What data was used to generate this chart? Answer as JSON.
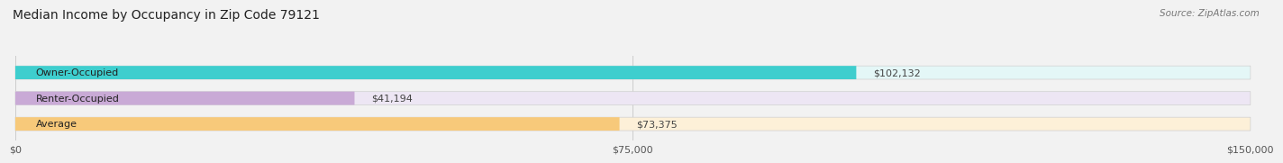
{
  "title": "Median Income by Occupancy in Zip Code 79121",
  "source": "Source: ZipAtlas.com",
  "categories": [
    "Owner-Occupied",
    "Renter-Occupied",
    "Average"
  ],
  "values": [
    102132,
    41194,
    73375
  ],
  "labels": [
    "$102,132",
    "$41,194",
    "$73,375"
  ],
  "bar_colors": [
    "#3ecece",
    "#c9aad6",
    "#f7c97a"
  ],
  "bar_bg_colors": [
    "#e4f7f7",
    "#ede6f4",
    "#fdf0d8"
  ],
  "xlim": [
    0,
    150000
  ],
  "xticks": [
    0,
    75000,
    150000
  ],
  "xtick_labels": [
    "$0",
    "$75,000",
    "$150,000"
  ],
  "title_fontsize": 10,
  "source_fontsize": 7.5,
  "label_fontsize": 8,
  "category_fontsize": 8,
  "bar_height": 0.52,
  "background_color": "#f2f2f2"
}
